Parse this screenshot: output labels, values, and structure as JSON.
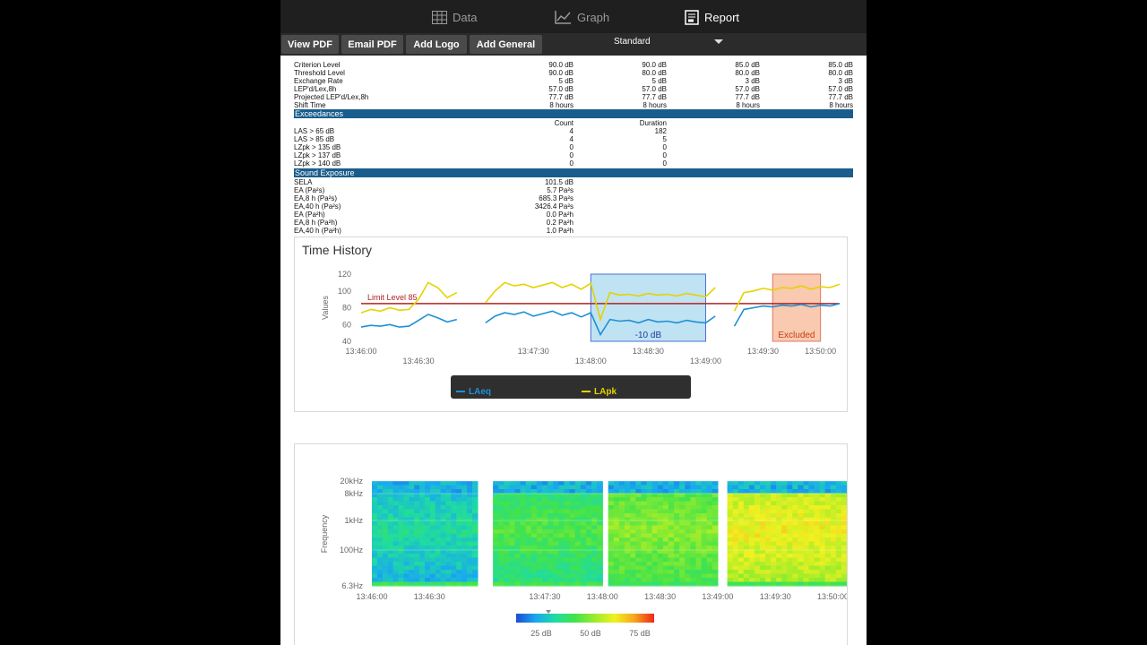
{
  "nav": {
    "tabs": [
      {
        "label": "Data",
        "icon": "table-icon"
      },
      {
        "label": "Graph",
        "icon": "chart-icon"
      },
      {
        "label": "Report",
        "icon": "report-icon"
      }
    ],
    "active": "Report"
  },
  "toolbar": {
    "view_pdf": "View PDF",
    "email_pdf": "Email PDF",
    "add_logo": "Add Logo",
    "add_general": "Add General",
    "standard": "Standard"
  },
  "report": {
    "rows_top": [
      {
        "label": "Criterion Level",
        "v": [
          "90.0 dB",
          "90.0 dB",
          "85.0 dB",
          "85.0 dB"
        ]
      },
      {
        "label": "Threshold Level",
        "v": [
          "90.0 dB",
          "80.0 dB",
          "80.0 dB",
          "80.0 dB"
        ]
      },
      {
        "label": "Exchange Rate",
        "v": [
          "5 dB",
          "5 dB",
          "3 dB",
          "3 dB"
        ]
      },
      {
        "label": "LEP'd/Lex,8h",
        "v": [
          "57.0 dB",
          "57.0 dB",
          "57.0 dB",
          "57.0 dB"
        ]
      },
      {
        "label": "Projected LEP'd/Lex,8h",
        "v": [
          "77.7 dB",
          "77.7 dB",
          "77.7 dB",
          "77.7 dB"
        ]
      },
      {
        "label": "Shift Time",
        "v": [
          "8 hours",
          "8 hours",
          "8 hours",
          "8 hours"
        ]
      }
    ],
    "exceedances_title": "Exceedances",
    "exc_headers": [
      "Count",
      "Duration"
    ],
    "exceedances": [
      {
        "label": "LAS > 65 dB",
        "count": "4",
        "duration": "182"
      },
      {
        "label": "LAS > 85 dB",
        "count": "4",
        "duration": "5"
      },
      {
        "label": "LZpk > 135 dB",
        "count": "0",
        "duration": "0"
      },
      {
        "label": "LZpk > 137 dB",
        "count": "0",
        "duration": "0"
      },
      {
        "label": "LZpk > 140 dB",
        "count": "0",
        "duration": "0"
      }
    ],
    "sound_exposure_title": "Sound Exposure",
    "sound_exposure": [
      {
        "label": "SELA",
        "value": "101.5 dB"
      },
      {
        "label": "EA (Pa²s)",
        "value": "5.7 Pa²s"
      },
      {
        "label": "EA,8 h (Pa²s)",
        "value": "685.3 Pa²s"
      },
      {
        "label": "EA,40 h (Pa²s)",
        "value": "3426.4 Pa²s"
      },
      {
        "label": "EA (Pa²h)",
        "value": "0.0 Pa²h"
      },
      {
        "label": "EA,8 h (Pa²h)",
        "value": "0.2 Pa²h"
      },
      {
        "label": "EA,40 h (Pa²h)",
        "value": "1.0 Pa²h"
      }
    ]
  },
  "chart_data": [
    {
      "type": "line",
      "title": "Time History",
      "ylabel": "Values",
      "ylim": [
        40,
        120
      ],
      "yticks": [
        "120",
        "100",
        "80",
        "60",
        "40"
      ],
      "xticks_top": [
        "13:46:00",
        "13:47:30",
        "13:48:30",
        "13:49:30",
        "13:50:00"
      ],
      "xticks_bottom": [
        "13:46:30",
        "13:48:00",
        "13:49:00"
      ],
      "limit_line": {
        "label": "Limit Level 85",
        "value": 85,
        "color": "#b22222"
      },
      "regions": [
        {
          "label": "-10 dB",
          "from": "13:48:00",
          "to": "13:49:00",
          "color": "#bfe3f3"
        },
        {
          "label": "Excluded",
          "from": "13:49:35",
          "to": "13:50:00",
          "color": "#f9c9b0"
        }
      ],
      "series": [
        {
          "name": "LAeq",
          "color": "#1e90d6",
          "x": [
            "13:46:00",
            "13:46:05",
            "13:46:10",
            "13:46:15",
            "13:46:20",
            "13:46:25",
            "13:46:30",
            "13:46:35",
            "13:46:40",
            "13:46:45",
            "13:46:50",
            "13:46:55",
            "13:47:00",
            "13:47:05",
            "13:47:10",
            "13:47:15",
            "13:47:20",
            "13:47:25",
            "13:47:30",
            "13:47:35",
            "13:47:40",
            "13:47:45",
            "13:47:50",
            "13:47:55",
            "13:48:00",
            "13:48:05",
            "13:48:10",
            "13:48:15",
            "13:48:20",
            "13:48:25",
            "13:48:30",
            "13:48:35",
            "13:48:40",
            "13:48:45",
            "13:48:50",
            "13:48:55",
            "13:49:00",
            "13:49:05",
            "13:49:10",
            "13:49:15",
            "13:49:20",
            "13:49:25",
            "13:49:30",
            "13:49:35",
            "13:49:40",
            "13:49:45",
            "13:49:50",
            "13:49:55",
            "13:50:00",
            "13:50:05",
            "13:50:10"
          ],
          "values": [
            57,
            59,
            58,
            60,
            57,
            58,
            65,
            72,
            68,
            63,
            66,
            null,
            null,
            62,
            70,
            74,
            72,
            75,
            70,
            73,
            76,
            71,
            74,
            69,
            74,
            48,
            66,
            64,
            65,
            62,
            66,
            63,
            64,
            62,
            65,
            63,
            62,
            70,
            null,
            58,
            78,
            80,
            82,
            81,
            83,
            82,
            84,
            81,
            83,
            82,
            85
          ]
        },
        {
          "name": "LApk",
          "color": "#e6d200",
          "x": [
            "13:46:00",
            "13:46:05",
            "13:46:10",
            "13:46:15",
            "13:46:20",
            "13:46:25",
            "13:46:30",
            "13:46:35",
            "13:46:40",
            "13:46:45",
            "13:46:50",
            "13:46:55",
            "13:47:00",
            "13:47:05",
            "13:47:10",
            "13:47:15",
            "13:47:20",
            "13:47:25",
            "13:47:30",
            "13:47:35",
            "13:47:40",
            "13:47:45",
            "13:47:50",
            "13:47:55",
            "13:48:00",
            "13:48:05",
            "13:48:10",
            "13:48:15",
            "13:48:20",
            "13:48:25",
            "13:48:30",
            "13:48:35",
            "13:48:40",
            "13:48:45",
            "13:48:50",
            "13:48:55",
            "13:49:00",
            "13:49:05",
            "13:49:10",
            "13:49:15",
            "13:49:20",
            "13:49:25",
            "13:49:30",
            "13:49:35",
            "13:49:40",
            "13:49:45",
            "13:49:50",
            "13:49:55",
            "13:50:00",
            "13:50:05",
            "13:50:10"
          ],
          "values": [
            74,
            78,
            76,
            80,
            77,
            78,
            90,
            110,
            104,
            92,
            98,
            null,
            null,
            86,
            100,
            110,
            106,
            108,
            104,
            107,
            110,
            104,
            108,
            102,
            109,
            66,
            98,
            95,
            96,
            94,
            97,
            95,
            96,
            94,
            97,
            95,
            93,
            104,
            null,
            76,
            98,
            100,
            103,
            101,
            104,
            103,
            106,
            102,
            105,
            104,
            108
          ]
        }
      ],
      "legend": [
        "LAeq",
        "LApk"
      ],
      "legend_position": "bottom"
    },
    {
      "type": "heatmap",
      "ylabel": "Frequency",
      "yticks": [
        "20kHz",
        "8kHz",
        "1kHz",
        "100Hz",
        "6.3Hz"
      ],
      "xticks_top": [
        "13:46:00",
        "13:47:30",
        "13:48:30",
        "13:49:30",
        "13:50:00"
      ],
      "xticks_bottom": [
        "13:46:30",
        "13:48:00",
        "13:49:00"
      ],
      "colorbar_ticks": [
        "25 dB",
        "50 dB",
        "75 dB"
      ],
      "colorbar_colors": [
        "#1e4bd2",
        "#19a9ef",
        "#1fdca0",
        "#43e34a",
        "#9bec2b",
        "#f1f120",
        "#f7a51d",
        "#f1261a"
      ]
    }
  ]
}
